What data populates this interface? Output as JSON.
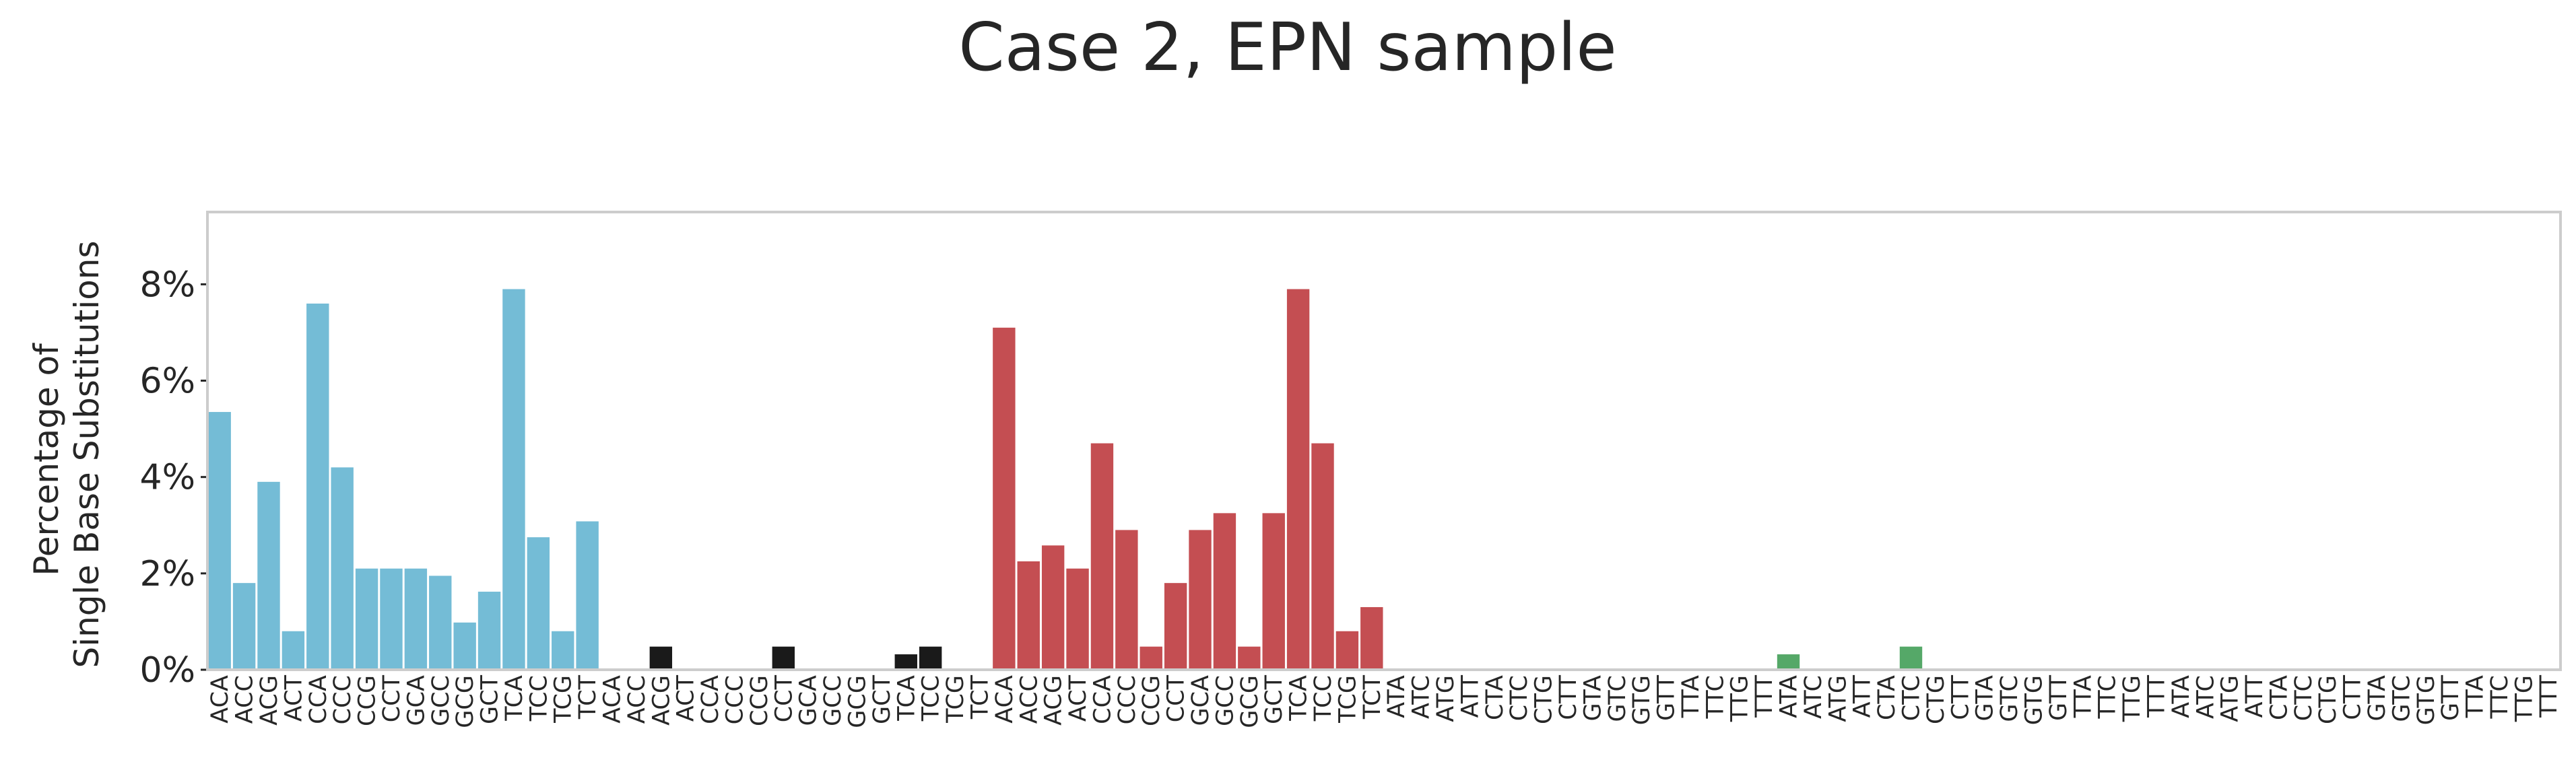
{
  "chart_data": {
    "type": "bar",
    "title": "Case 2, EPN sample",
    "ylabel": "Percentage of\nSingle Base Substitutions",
    "ylim": [
      0,
      9.5
    ],
    "yticks": [
      0,
      2,
      4,
      6,
      8
    ],
    "ytick_format": "{v}%",
    "grid": false,
    "legend": "none",
    "categories": [
      "ACA",
      "ACC",
      "ACG",
      "ACT",
      "CCA",
      "CCC",
      "CCG",
      "CCT",
      "GCA",
      "GCC",
      "GCG",
      "GCT",
      "TCA",
      "TCC",
      "TCG",
      "TCT",
      "ACA",
      "ACC",
      "ACG",
      "ACT",
      "CCA",
      "CCC",
      "CCG",
      "CCT",
      "GCA",
      "GCC",
      "GCG",
      "GCT",
      "TCA",
      "TCC",
      "TCG",
      "TCT",
      "ACA",
      "ACC",
      "ACG",
      "ACT",
      "CCA",
      "CCC",
      "CCG",
      "CCT",
      "GCA",
      "GCC",
      "GCG",
      "GCT",
      "TCA",
      "TCC",
      "TCG",
      "TCT",
      "ATA",
      "ATC",
      "ATG",
      "ATT",
      "CTA",
      "CTC",
      "CTG",
      "CTT",
      "GTA",
      "GTC",
      "GTG",
      "GTT",
      "TTA",
      "TTC",
      "TTG",
      "TTT",
      "ATA",
      "ATC",
      "ATG",
      "ATT",
      "CTA",
      "CTC",
      "CTG",
      "CTT",
      "GTA",
      "GTC",
      "GTG",
      "GTT",
      "TTA",
      "TTC",
      "TTG",
      "TTT",
      "ATA",
      "ATC",
      "ATG",
      "ATT",
      "CTA",
      "CTC",
      "CTG",
      "CTT",
      "GTA",
      "GTC",
      "GTG",
      "GTT",
      "TTA",
      "TTC",
      "TTG",
      "TTT"
    ],
    "values": [
      5.35,
      1.8,
      3.9,
      0.8,
      7.6,
      4.2,
      2.1,
      2.1,
      2.1,
      1.95,
      0.98,
      1.62,
      7.9,
      2.75,
      0.8,
      3.08,
      0,
      0,
      0.48,
      0,
      0,
      0,
      0,
      0.48,
      0,
      0,
      0,
      0,
      0.32,
      0.48,
      0,
      0,
      7.1,
      2.25,
      2.58,
      2.1,
      4.7,
      2.9,
      0.48,
      1.8,
      2.9,
      3.25,
      0.48,
      3.25,
      7.9,
      4.7,
      0.8,
      1.3,
      0,
      0,
      0,
      0,
      0,
      0,
      0,
      0,
      0,
      0,
      0,
      0,
      0,
      0,
      0,
      0,
      0.32,
      0,
      0,
      0,
      0,
      0.48,
      0,
      0,
      0,
      0,
      0,
      0,
      0,
      0,
      0,
      0,
      0,
      0,
      0,
      0,
      0,
      0,
      0,
      0,
      0,
      0,
      0,
      0,
      0,
      0,
      0,
      0
    ],
    "group_colors": [
      "#74bcd6",
      "#1a1a1a",
      "#c44e52",
      "#a6a6a6",
      "#55a868",
      "#e8b8b8"
    ],
    "group_size": 16
  }
}
